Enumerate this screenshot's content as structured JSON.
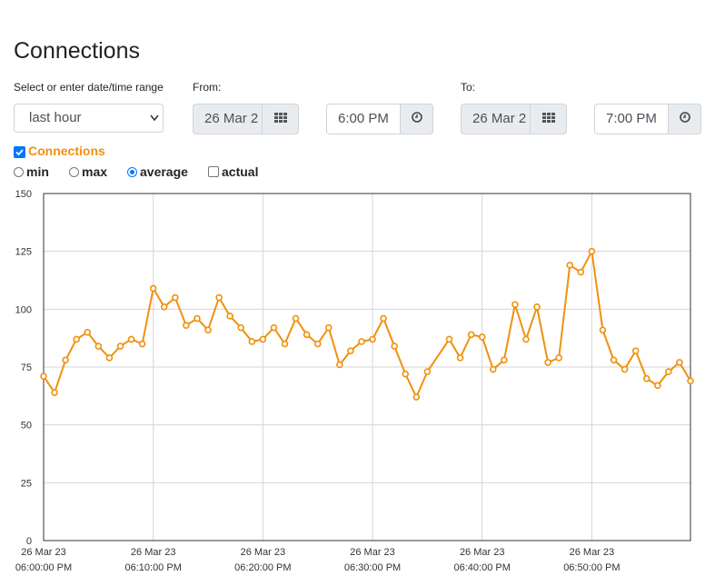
{
  "page": {
    "title": "Connections"
  },
  "range": {
    "label": "Select or enter date/time range",
    "value": "last hour"
  },
  "from": {
    "label": "From:",
    "date": "26 Mar 2",
    "time": "6:00 PM"
  },
  "to": {
    "label": "To:",
    "date": "26 Mar 2",
    "time": "7:00 PM"
  },
  "series_toggle": {
    "label": "Connections",
    "checked": true
  },
  "options": [
    {
      "label": "min",
      "selected": false
    },
    {
      "label": "max",
      "selected": false
    },
    {
      "label": "average",
      "selected": true
    },
    {
      "label": "actual",
      "checked": false
    }
  ],
  "colors": {
    "series": "#f0900d",
    "grid": "#d6d6d6",
    "axis": "#333333"
  },
  "chart_data": {
    "type": "line",
    "title": "",
    "xlabel": "",
    "ylabel": "",
    "ylim": [
      0,
      150
    ],
    "yticks": [
      0,
      25,
      50,
      75,
      100,
      125,
      150
    ],
    "xlim": [
      "2023-03-26 06:00:00",
      "2023-03-26 06:59:00"
    ],
    "xticks": [
      {
        "date": "26 Mar 23",
        "time": "06:00:00 PM"
      },
      {
        "date": "26 Mar 23",
        "time": "06:10:00 PM"
      },
      {
        "date": "26 Mar 23",
        "time": "06:20:00 PM"
      },
      {
        "date": "26 Mar 23",
        "time": "06:30:00 PM"
      },
      {
        "date": "26 Mar 23",
        "time": "06:40:00 PM"
      },
      {
        "date": "26 Mar 23",
        "time": "06:50:00 PM"
      }
    ],
    "grid": true,
    "series": [
      {
        "points": [
          [
            "06:00",
            71
          ],
          [
            "06:01",
            64
          ],
          [
            "06:02",
            78
          ],
          [
            "06:03",
            87
          ],
          [
            "06:04",
            90
          ],
          [
            "06:05",
            84
          ],
          [
            "06:06",
            79
          ],
          [
            "06:07",
            84
          ],
          [
            "06:08",
            87
          ],
          [
            "06:09",
            85
          ],
          [
            "06:10",
            109
          ],
          [
            "06:11",
            101
          ],
          [
            "06:12",
            105
          ],
          [
            "06:13",
            93
          ],
          [
            "06:14",
            96
          ],
          [
            "06:15",
            91
          ],
          [
            "06:16",
            105
          ],
          [
            "06:17",
            97
          ],
          [
            "06:18",
            92
          ],
          [
            "06:19",
            86
          ],
          [
            "06:20",
            87
          ],
          [
            "06:21",
            92
          ],
          [
            "06:22",
            85
          ],
          [
            "06:23",
            96
          ],
          [
            "06:24",
            89
          ],
          [
            "06:25",
            85
          ],
          [
            "06:26",
            92
          ],
          [
            "06:27",
            76
          ],
          [
            "06:28",
            82
          ],
          [
            "06:29",
            86
          ],
          [
            "06:30",
            87
          ],
          [
            "06:31",
            96
          ],
          [
            "06:32",
            84
          ],
          [
            "06:33",
            72
          ],
          [
            "06:34",
            62
          ],
          [
            "06:35",
            73
          ],
          [
            "06:37",
            87
          ],
          [
            "06:38",
            79
          ],
          [
            "06:39",
            89
          ],
          [
            "06:40",
            88
          ],
          [
            "06:41",
            74
          ],
          [
            "06:42",
            78
          ],
          [
            "06:43",
            102
          ],
          [
            "06:44",
            87
          ],
          [
            "06:45",
            101
          ],
          [
            "06:46",
            77
          ],
          [
            "06:47",
            79
          ],
          [
            "06:48",
            119
          ],
          [
            "06:49",
            116
          ],
          [
            "06:50",
            125
          ],
          [
            "06:51",
            91
          ],
          [
            "06:52",
            78
          ],
          [
            "06:53",
            74
          ],
          [
            "06:54",
            82
          ],
          [
            "06:55",
            70
          ],
          [
            "06:56",
            67
          ],
          [
            "06:57",
            73
          ],
          [
            "06:58",
            77
          ],
          [
            "06:59",
            69
          ]
        ]
      }
    ]
  }
}
